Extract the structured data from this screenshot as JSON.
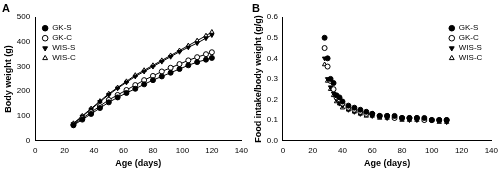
{
  "chart_data": [
    {
      "type": "line",
      "title": "A",
      "x_label": "Age (days)",
      "y_label": "Body weight (g)",
      "x": [
        26,
        32,
        38,
        44,
        50,
        56,
        62,
        68,
        74,
        80,
        86,
        92,
        98,
        104,
        110,
        116,
        120
      ],
      "series": [
        {
          "name": "GK-S",
          "color": "#000000",
          "marker": "circle",
          "line_style": "solid",
          "values": [
            62,
            85,
            108,
            132,
            155,
            175,
            193,
            210,
            228,
            245,
            260,
            275,
            290,
            305,
            318,
            328,
            335
          ]
        },
        {
          "name": "GK-C",
          "color": "#000000",
          "marker": "circle_open",
          "line_style": "solid",
          "values": [
            65,
            90,
            115,
            140,
            165,
            185,
            205,
            225,
            245,
            262,
            280,
            295,
            310,
            325,
            338,
            350,
            358
          ]
        },
        {
          "name": "WIS-S",
          "color": "#000000",
          "marker": "triangle_down",
          "line_style": "solid",
          "values": [
            68,
            98,
            127,
            157,
            186,
            212,
            236,
            260,
            280,
            300,
            320,
            340,
            360,
            378,
            395,
            415,
            428
          ]
        },
        {
          "name": "WIS-C",
          "color": "#000000",
          "marker": "triangle_open",
          "line_style": "solid",
          "values": [
            70,
            100,
            130,
            160,
            190,
            215,
            240,
            265,
            285,
            305,
            325,
            345,
            365,
            385,
            405,
            425,
            440
          ]
        }
      ],
      "xlim": [
        0,
        140
      ],
      "xticks": [
        0,
        20,
        40,
        60,
        80,
        100,
        120,
        140
      ],
      "ylim": [
        0,
        500
      ],
      "yticks": [
        0,
        100,
        200,
        300,
        400,
        500
      ],
      "grid": false,
      "legend": "upper left"
    },
    {
      "type": "scatter",
      "title": "B",
      "x_label": "Age (days)",
      "y_label": "Food intake/body weight (g/g)",
      "x": [
        28,
        30,
        32,
        34,
        36,
        38,
        40,
        44,
        48,
        52,
        56,
        60,
        65,
        70,
        75,
        80,
        85,
        90,
        95,
        100,
        105,
        110
      ],
      "series": [
        {
          "name": "GK-S",
          "color": "#000000",
          "marker": "circle",
          "line_style": "none",
          "values": [
            0.5,
            0.4,
            0.3,
            0.28,
            0.22,
            0.21,
            0.19,
            0.17,
            0.16,
            0.15,
            0.14,
            0.13,
            0.12,
            0.12,
            0.12,
            0.11,
            0.11,
            0.11,
            0.11,
            0.1,
            0.1,
            0.1
          ]
        },
        {
          "name": "GK-C",
          "color": "#000000",
          "marker": "circle_open",
          "line_style": "none",
          "values": [
            0.45,
            0.36,
            0.29,
            0.25,
            0.21,
            0.2,
            0.18,
            0.16,
            0.15,
            0.14,
            0.13,
            0.13,
            0.12,
            0.12,
            0.11,
            0.11,
            0.11,
            0.11,
            0.1,
            0.1,
            0.1,
            0.1
          ]
        },
        {
          "name": "WIS-S",
          "color": "#000000",
          "marker": "triangle_down",
          "line_style": "none",
          "values": [
            0.4,
            0.3,
            0.26,
            0.23,
            0.2,
            0.18,
            0.17,
            0.15,
            0.14,
            0.13,
            0.13,
            0.12,
            0.12,
            0.11,
            0.11,
            0.11,
            0.1,
            0.1,
            0.1,
            0.1,
            0.1,
            0.09
          ]
        },
        {
          "name": "WIS-C",
          "color": "#000000",
          "marker": "triangle_open",
          "line_style": "none",
          "values": [
            0.37,
            0.29,
            0.25,
            0.22,
            0.19,
            0.18,
            0.16,
            0.15,
            0.14,
            0.13,
            0.12,
            0.12,
            0.11,
            0.11,
            0.11,
            0.1,
            0.1,
            0.1,
            0.1,
            0.1,
            0.09,
            0.09
          ]
        }
      ],
      "xlim": [
        0,
        140
      ],
      "xticks": [
        0,
        20,
        40,
        60,
        80,
        100,
        120,
        140
      ],
      "ylim": [
        0,
        0.6
      ],
      "yticks": [
        {
          "value": 0,
          "label": "0.0"
        },
        0.1,
        0.2,
        0.3,
        0.4,
        0.5,
        0.6
      ],
      "grid": false,
      "legend": "upper right"
    }
  ]
}
